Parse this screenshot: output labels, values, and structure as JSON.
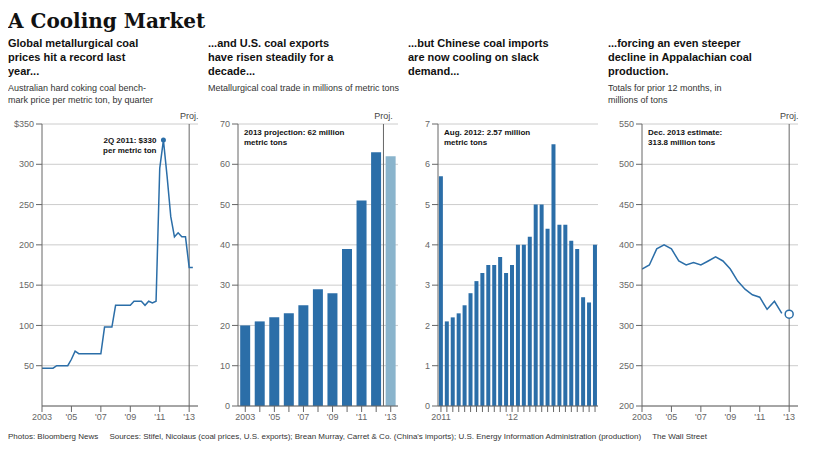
{
  "title": "A Cooling Market",
  "annotations": [
    "Photos: Bloomberg News     Sources: Stifel, Nicolaus (coal prices, U.S. exports); Brean Murray, Carret & Co. (China's imports); U.S. Energy Information Administration (production)     The Wall Street"
  ],
  "chart_data": [
    {
      "type": "line",
      "title": "Global metallurgical coal\nprices hit a record last\nyear...",
      "subtitle": "Australian hard coking coal bench-\nmark price per metric ton, by quarter",
      "x": [
        2003,
        2003.25,
        2003.5,
        2003.75,
        2004,
        2004.25,
        2004.5,
        2004.75,
        2005,
        2005.25,
        2005.5,
        2005.75,
        2006,
        2006.25,
        2006.5,
        2006.75,
        2007,
        2007.25,
        2007.5,
        2007.75,
        2008,
        2008.25,
        2008.5,
        2008.75,
        2009,
        2009.25,
        2009.5,
        2009.75,
        2010,
        2010.25,
        2010.5,
        2010.75,
        2011,
        2011.25,
        2011.5,
        2011.75,
        2012,
        2012.25,
        2012.5,
        2012.75,
        2013,
        2013.25
      ],
      "series": [
        {
          "color": "#2b6ea8",
          "values": [
            47,
            47,
            47,
            47,
            50,
            50,
            50,
            50,
            58,
            68,
            65,
            65,
            65,
            65,
            65,
            65,
            65,
            98,
            98,
            98,
            125,
            125,
            125,
            125,
            125,
            130,
            130,
            130,
            125,
            130,
            128,
            130,
            295,
            330,
            285,
            235,
            210,
            215,
            210,
            210,
            172,
            172
          ]
        }
      ],
      "xlim": [
        2003,
        2013.6
      ],
      "xticks": [
        2003,
        {
          "value": 2005,
          "label": "'05"
        },
        {
          "value": 2007,
          "label": "'07"
        },
        {
          "value": 2009,
          "label": "'09"
        },
        {
          "value": 2011,
          "label": "'11"
        },
        {
          "value": 2013,
          "label": "'13"
        }
      ],
      "ylim": [
        0,
        350
      ],
      "yticks": [
        50,
        100,
        150,
        200,
        250,
        300,
        {
          "value": 350,
          "label": "$350"
        }
      ],
      "grid": true,
      "annotations": [
        {
          "text": "2Q 2011: $330\nper metric ton",
          "x": 2011.25,
          "y": 330
        },
        {
          "text": "Proj.",
          "x": 2013
        }
      ]
    },
    {
      "type": "bar",
      "title": "...and U.S. coal exports\nhave risen steadily for a\ndecade...",
      "subtitle": "Metallurgical coal trade in millions of metric tons",
      "categories": [
        "2003",
        null,
        "'05",
        null,
        "'07",
        null,
        "'09",
        null,
        "'11",
        null,
        "'13"
      ],
      "values": [
        20,
        21,
        22,
        23,
        25,
        29,
        28,
        39,
        51,
        63,
        62
      ],
      "colors": [
        "#2b6ea8",
        "#2b6ea8",
        "#2b6ea8",
        "#2b6ea8",
        "#2b6ea8",
        "#2b6ea8",
        "#2b6ea8",
        "#2b6ea8",
        "#2b6ea8",
        "#2b6ea8",
        "#8ab4cc"
      ],
      "ylim": [
        0,
        70
      ],
      "yticks": [
        0,
        10,
        20,
        30,
        40,
        50,
        60,
        70
      ],
      "grid": true,
      "annotations": [
        {
          "text": "2013 projection: 62 million\nmetric tons"
        },
        {
          "text": "Proj.",
          "index": 10
        }
      ]
    },
    {
      "type": "bar",
      "title": "...but Chinese coal imports\nare now cooling on slack\ndemand...",
      "categories": [
        "2011",
        null,
        null,
        null,
        null,
        null,
        null,
        null,
        null,
        null,
        null,
        null,
        "'12",
        null,
        null,
        null,
        null,
        null,
        null,
        null,
        null,
        null,
        null,
        null,
        null,
        null,
        null
      ],
      "values": [
        5.7,
        2.1,
        2.2,
        2.3,
        2.5,
        2.8,
        3.1,
        3.3,
        3.5,
        3.5,
        3.7,
        3.3,
        3.5,
        4.0,
        4.0,
        4.2,
        5.0,
        5.0,
        4.4,
        6.5,
        4.5,
        4.5,
        4.1,
        3.9,
        2.7,
        2.57,
        4.0
      ],
      "color": "#2b6ea8",
      "ylim": [
        0,
        7
      ],
      "yticks": [
        0,
        1,
        2,
        3,
        4,
        5,
        6,
        7
      ],
      "grid": true,
      "annotations": [
        {
          "text": "Aug. 2012: 2.57 million\nmetric tons"
        }
      ]
    },
    {
      "type": "line",
      "title": "...forcing an even steeper\ndecline in Appalachian coal\nproduction.",
      "subtitle": "Totals for prior 12 months, in\nmillions of tons",
      "series": [
        {
          "type": "line",
          "color": "#2b6ea8",
          "x": [
            2003,
            2003.5,
            2004,
            2004.5,
            2005,
            2005.5,
            2006,
            2006.5,
            2007,
            2007.5,
            2008,
            2008.5,
            2009,
            2009.5,
            2010,
            2010.5,
            2011,
            2011.5,
            2012,
            2012.5
          ],
          "values": [
            370,
            375,
            395,
            400,
            395,
            380,
            375,
            378,
            375,
            380,
            385,
            380,
            370,
            355,
            345,
            338,
            335,
            320,
            330,
            315
          ]
        },
        {
          "type": "scatter",
          "marker": "circle",
          "color": "#2b6ea8",
          "x": [
            2013
          ],
          "values": [
            314
          ]
        }
      ],
      "xlim": [
        2003,
        2013.6
      ],
      "xticks": [
        2003,
        {
          "value": 2005,
          "label": "'05"
        },
        {
          "value": 2007,
          "label": "'07"
        },
        {
          "value": 2009,
          "label": "'09"
        },
        {
          "value": 2011,
          "label": "'11"
        },
        {
          "value": 2013,
          "label": "'13"
        }
      ],
      "ylim": [
        200,
        550
      ],
      "yticks": [
        200,
        250,
        300,
        350,
        400,
        450,
        500,
        550
      ],
      "grid": true,
      "annotations": [
        {
          "text": "Dec. 2013 estimate:\n313.8 million tons"
        },
        {
          "text": "Proj.",
          "x": 2013
        }
      ]
    }
  ]
}
